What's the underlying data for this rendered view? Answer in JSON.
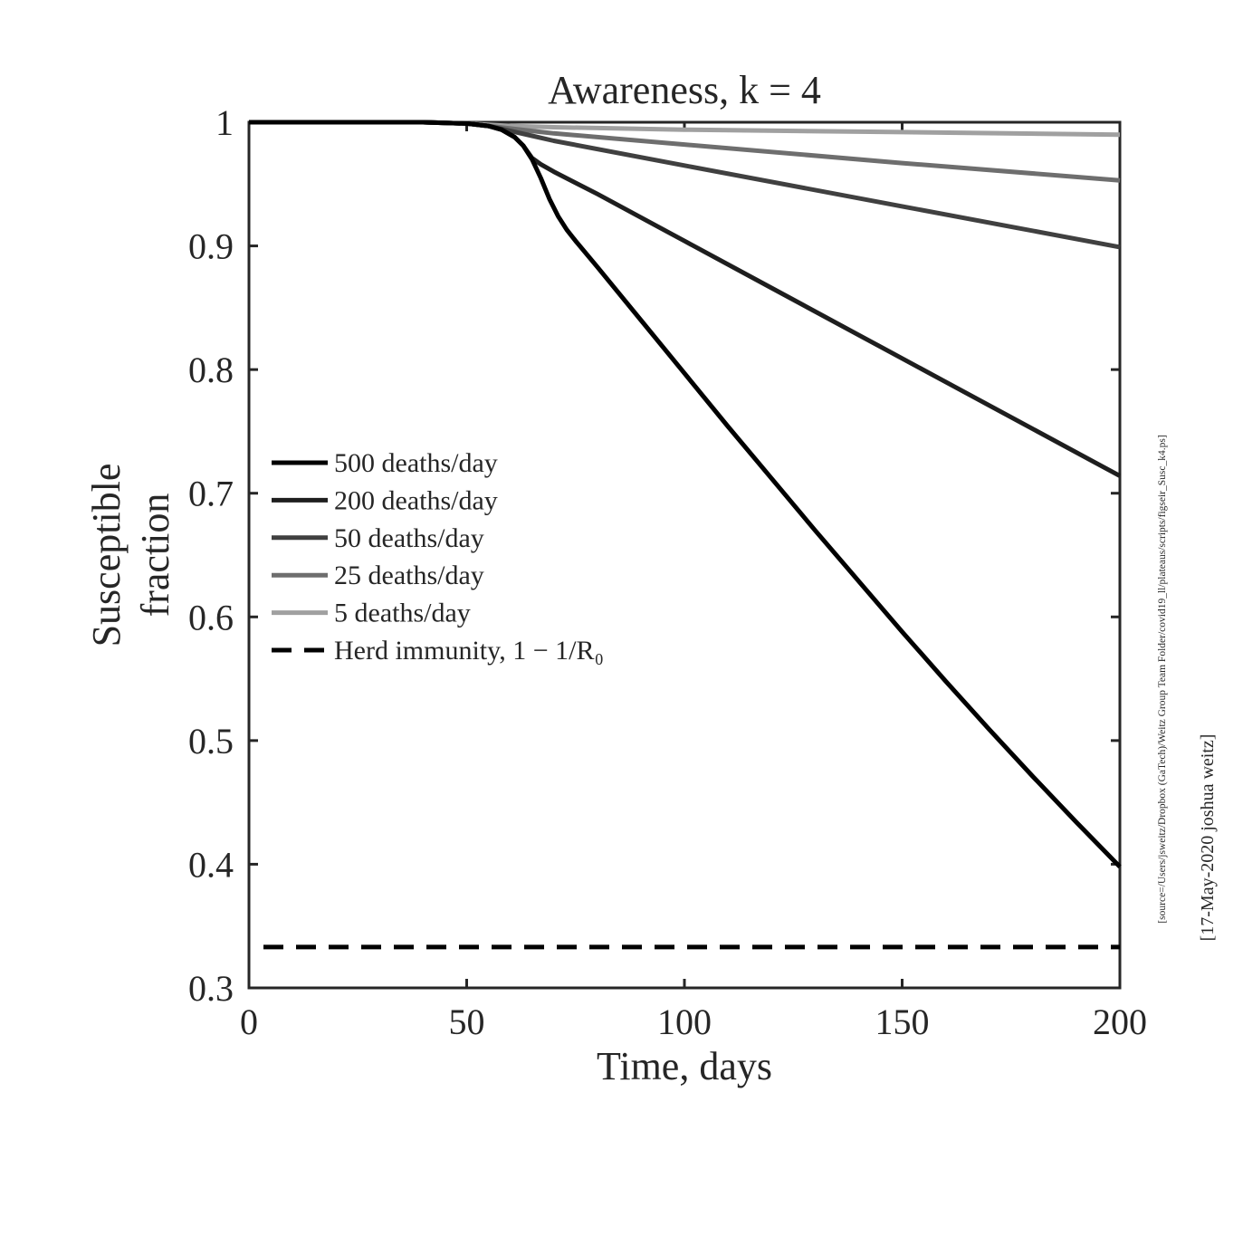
{
  "chart_data": {
    "type": "line",
    "title": "Awareness, k = 4",
    "xlabel": "Time, days",
    "ylabel": [
      "Susceptible",
      "fraction"
    ],
    "xlim": [
      0,
      200
    ],
    "ylim": [
      0.3,
      1
    ],
    "xticks": [
      "0",
      "50",
      "100",
      "150",
      "200"
    ],
    "yticks": [
      "0.3",
      "0.4",
      "0.5",
      "0.6",
      "0.7",
      "0.8",
      "0.9",
      "1"
    ],
    "xtick_values": [
      0,
      50,
      100,
      150,
      200
    ],
    "ytick_values": [
      0.3,
      0.4,
      0.5,
      0.6,
      0.7,
      0.8,
      0.9,
      1.0
    ],
    "grid": false,
    "legend_position": "center-left",
    "series": [
      {
        "name": "500 deaths/day",
        "color": "#000000",
        "x": [
          0,
          20,
          40,
          50,
          55,
          58,
          61,
          63,
          65,
          67,
          69,
          71,
          73,
          75,
          80,
          90,
          100,
          110,
          120,
          130,
          140,
          150,
          160,
          170,
          180,
          190,
          200
        ],
        "y": [
          1.0,
          1.0,
          1.0,
          0.999,
          0.997,
          0.994,
          0.988,
          0.981,
          0.97,
          0.955,
          0.938,
          0.924,
          0.913,
          0.904,
          0.883,
          0.84,
          0.797,
          0.754,
          0.712,
          0.67,
          0.629,
          0.588,
          0.548,
          0.509,
          0.471,
          0.434,
          0.398
        ]
      },
      {
        "name": "200 deaths/day",
        "color": "#1e1e1e",
        "x": [
          0,
          20,
          40,
          50,
          55,
          58,
          61,
          63,
          65,
          67,
          70,
          80,
          100,
          120,
          140,
          160,
          180,
          200
        ],
        "y": [
          1.0,
          1.0,
          1.0,
          0.999,
          0.997,
          0.994,
          0.988,
          0.981,
          0.971,
          0.966,
          0.96,
          0.942,
          0.904,
          0.866,
          0.828,
          0.79,
          0.752,
          0.714
        ]
      },
      {
        "name": "50 deaths/day",
        "color": "#404040",
        "x": [
          0,
          20,
          40,
          50,
          55,
          60,
          65,
          70,
          100,
          150,
          200
        ],
        "y": [
          1.0,
          1.0,
          1.0,
          0.999,
          0.997,
          0.993,
          0.989,
          0.985,
          0.965,
          0.932,
          0.899
        ]
      },
      {
        "name": "25 deaths/day",
        "color": "#6e6e6e",
        "x": [
          0,
          20,
          40,
          50,
          55,
          60,
          65,
          70,
          100,
          150,
          200
        ],
        "y": [
          1.0,
          1.0,
          1.0,
          0.999,
          0.997,
          0.995,
          0.993,
          0.991,
          0.982,
          0.967,
          0.953
        ]
      },
      {
        "name": "5 deaths/day",
        "color": "#a0a0a0",
        "x": [
          0,
          20,
          40,
          50,
          55,
          60,
          70,
          100,
          150,
          200
        ],
        "y": [
          1.0,
          1.0,
          1.0,
          0.999,
          0.998,
          0.997,
          0.996,
          0.994,
          0.992,
          0.99
        ]
      }
    ],
    "reference_line": {
      "name": "Herd immunity, 1 − 1/R₀",
      "y": 0.333,
      "color": "#000000",
      "style": "dashed"
    }
  },
  "annotations": {
    "source": "[source=/Users/jsweitz/Dropbox (GaTech)/Weitz Group Team Folder/covid19_ll/plateaus/scripts/figseir_Susc_k4.ps]",
    "credit": "[17-May-2020 joshua weitz]"
  }
}
